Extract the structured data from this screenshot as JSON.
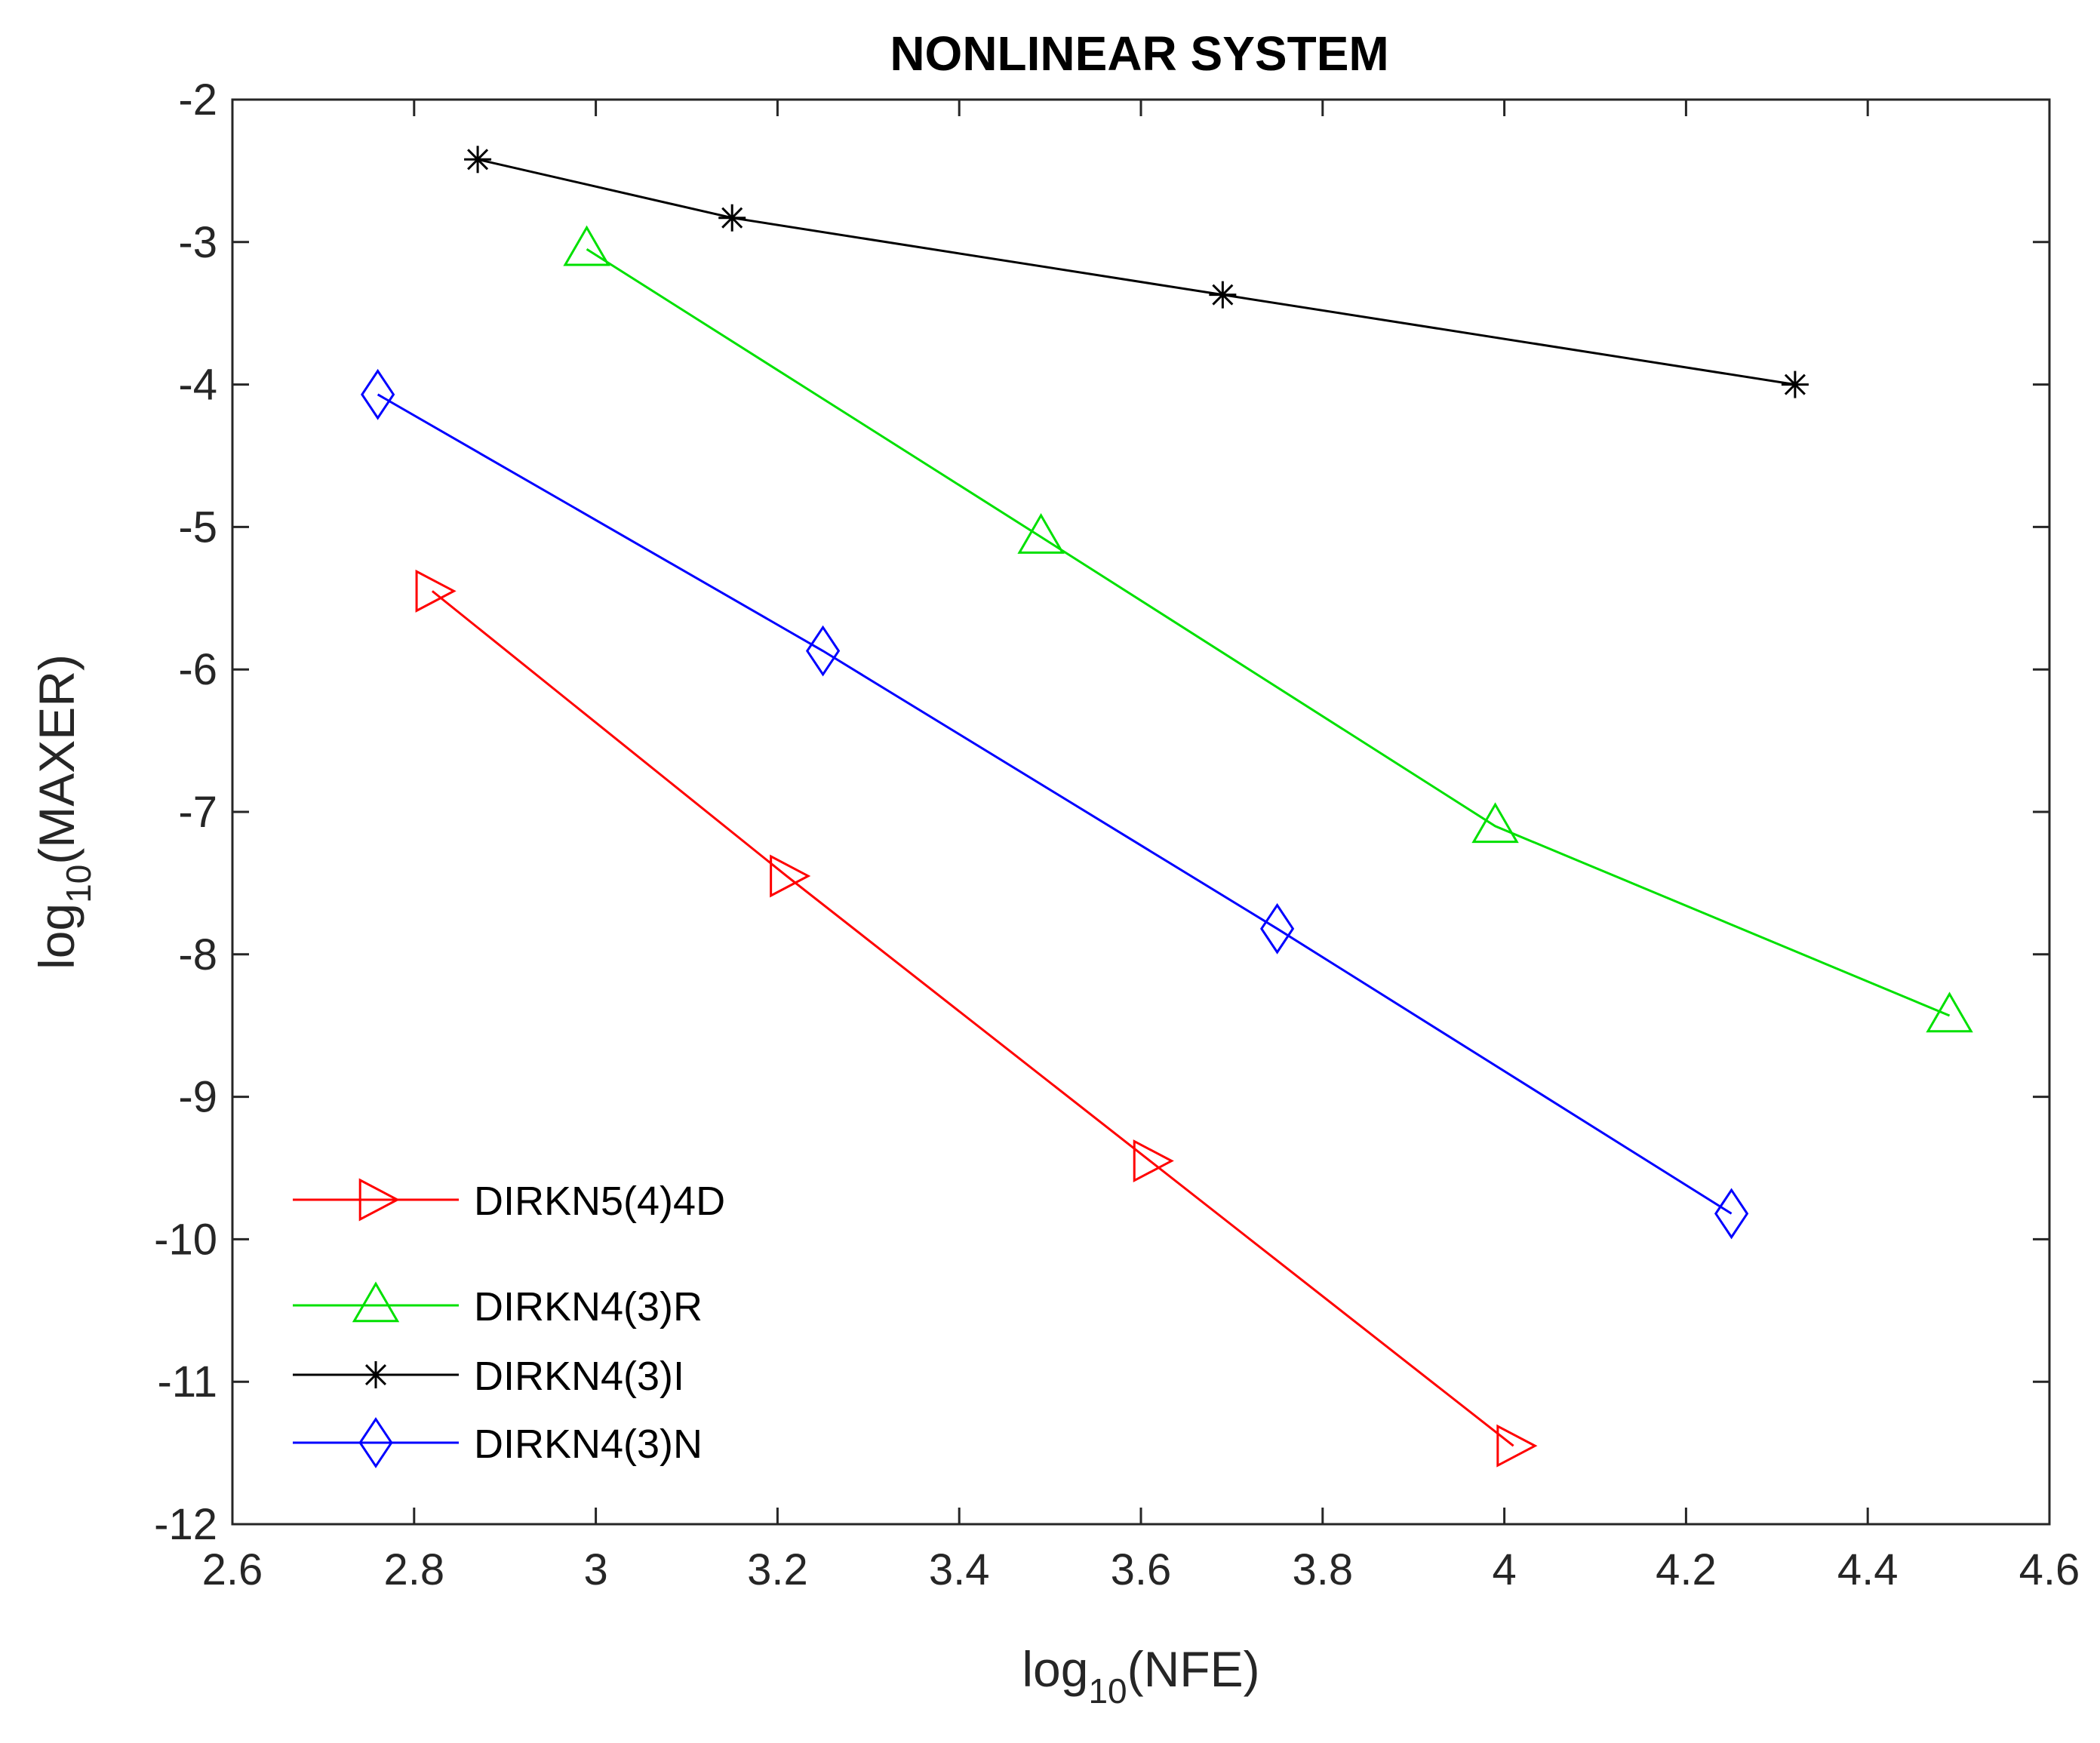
{
  "chart_data": {
    "type": "line",
    "title": "NONLINEAR SYSTEM",
    "xlabel": {
      "base": "log",
      "sub": "10",
      "rest": "(NFE)"
    },
    "ylabel": {
      "base": "log",
      "sub": "10",
      "rest": "(MAXER)"
    },
    "xlim": [
      2.6,
      4.6
    ],
    "ylim": [
      -12,
      -2
    ],
    "xticks": [
      2.6,
      2.8,
      3.0,
      3.2,
      3.4,
      3.6,
      3.8,
      4.0,
      4.2,
      4.4,
      4.6
    ],
    "xtick_labels": [
      "2.6",
      "2.8",
      "3",
      "3.2",
      "3.4",
      "3.6",
      "3.8",
      "4",
      "4.2",
      "4.4",
      "4.6"
    ],
    "yticks": [
      -2,
      -3,
      -4,
      -5,
      -6,
      -7,
      -8,
      -9,
      -10,
      -11,
      -12
    ],
    "ytick_labels": [
      "-2",
      "-3",
      "-4",
      "-5",
      "-6",
      "-7",
      "-8",
      "-9",
      "-10",
      "-11",
      "-12"
    ],
    "grid": false,
    "legend_position": "bottom-left",
    "series": [
      {
        "name": "DIRKN5(4)4D",
        "color": "#ff0000",
        "marker": "triangle-right",
        "x": [
          2.82,
          3.21,
          3.61,
          4.01
        ],
        "y": [
          -5.45,
          -7.45,
          -9.45,
          -11.45
        ]
      },
      {
        "name": "DIRKN4(3)R",
        "color": "#00e000",
        "marker": "triangle-up",
        "x": [
          2.99,
          3.49,
          3.99,
          4.49
        ],
        "y": [
          -3.05,
          -5.07,
          -7.1,
          -8.43
        ]
      },
      {
        "name": "DIRKN4(3)I",
        "color": "#000000",
        "marker": "asterisk",
        "x": [
          2.87,
          3.15,
          3.69,
          4.32
        ],
        "y": [
          -2.42,
          -2.83,
          -3.37,
          -4.0
        ]
      },
      {
        "name": "DIRKN4(3)N",
        "color": "#0000ff",
        "marker": "diamond",
        "x": [
          2.76,
          3.25,
          3.75,
          4.25
        ],
        "y": [
          -4.07,
          -5.87,
          -7.82,
          -9.82
        ]
      }
    ]
  }
}
